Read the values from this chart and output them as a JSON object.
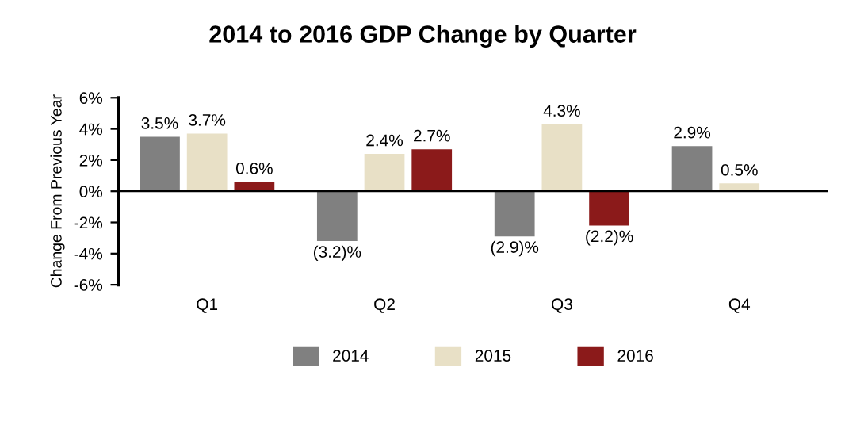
{
  "chart_data": {
    "type": "bar",
    "title": "2014 to 2016 GDP Change by Quarter",
    "ylabel": "Change From Previous Year",
    "categories": [
      "Q1",
      "Q2",
      "Q3",
      "Q4"
    ],
    "series": [
      {
        "name": "2014",
        "color": "#808080",
        "values": [
          3.5,
          -3.2,
          -2.9,
          2.9
        ],
        "value_labels": [
          "3.5%",
          "(3.2)%",
          "(2.9)%",
          "2.9%"
        ]
      },
      {
        "name": "2015",
        "color": "#e8e0c6",
        "values": [
          3.7,
          2.4,
          4.3,
          0.5
        ],
        "value_labels": [
          "3.7%",
          "2.4%",
          "4.3%",
          "0.5%"
        ]
      },
      {
        "name": "2016",
        "color": "#8b1a1a",
        "values": [
          0.6,
          2.7,
          -2.2,
          null
        ],
        "value_labels": [
          "0.6%",
          "2.7%",
          "(2.2)%",
          null
        ]
      }
    ],
    "ylim": [
      -6,
      6
    ],
    "yticks": [
      {
        "value": -6,
        "label": "-6%"
      },
      {
        "value": -4,
        "label": "-4%"
      },
      {
        "value": -2,
        "label": "-2%"
      },
      {
        "value": 0,
        "label": "0%"
      },
      {
        "value": 2,
        "label": "2%"
      },
      {
        "value": 4,
        "label": "4%"
      },
      {
        "value": 6,
        "label": "6%"
      }
    ],
    "ref_lines": [
      {
        "axis": "y",
        "value": 0,
        "color": "#000000"
      }
    ],
    "legend": "bottom"
  }
}
